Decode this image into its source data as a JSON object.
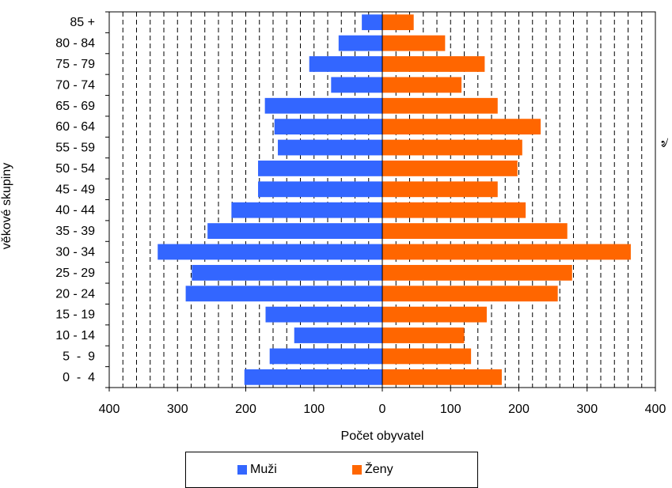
{
  "chart_data": {
    "type": "bar",
    "orientation": "horizontal",
    "subtype": "population-pyramid",
    "ylabel": "věkové skupiny",
    "xlabel": "Počet obyvatel",
    "categories": [
      "85 +",
      "80 - 84",
      "75 - 79",
      "70 - 74",
      "65 - 69",
      "60 - 64",
      "55 - 59",
      "50 - 54",
      "45 - 49",
      "40 - 44",
      "35 - 39",
      "30 - 34",
      "25 - 29",
      "20 - 24",
      "15 - 19",
      "10 - 14",
      "5  -  9",
      "0  -  4"
    ],
    "series": [
      {
        "name": "Muži",
        "color": "#3366FF",
        "values": [
          30,
          64,
          107,
          75,
          172,
          158,
          153,
          182,
          182,
          221,
          256,
          329,
          279,
          288,
          171,
          129,
          165,
          202
        ]
      },
      {
        "name": "Ženy",
        "color": "#FF6600",
        "values": [
          46,
          92,
          150,
          116,
          169,
          232,
          205,
          198,
          169,
          210,
          271,
          364,
          278,
          257,
          153,
          120,
          130,
          175
        ]
      }
    ],
    "xlim": [
      -400,
      400
    ],
    "xticks": [
      -400,
      -300,
      -200,
      -100,
      0,
      100,
      200,
      300,
      400
    ],
    "xtick_labels": [
      "400",
      "300",
      "200",
      "100",
      "0",
      "100",
      "200",
      "300",
      "400"
    ],
    "grid": "vertical dashed every 20",
    "legend_position": "bottom"
  },
  "edge_glyph": "৶"
}
